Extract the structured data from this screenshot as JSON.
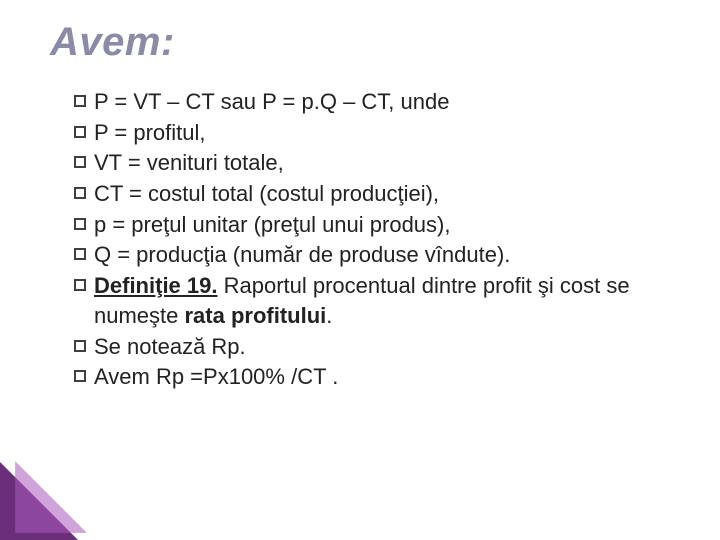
{
  "title": "Avem:",
  "lines": [
    {
      "type": "plain",
      "text": "P = VT – CT sau P = p.Q – CT, unde"
    },
    {
      "type": "plain",
      "text": "P = profitul,"
    },
    {
      "type": "plain",
      "text": "VT = venituri totale,"
    },
    {
      "type": "plain",
      "text": "CT = costul total (costul producţiei),"
    },
    {
      "type": "plain",
      "text": "p = preţul unitar (preţul unui produs),"
    },
    {
      "type": "plain",
      "text": "Q = producţia (număr de produse vîndute)."
    },
    {
      "type": "def",
      "lead": "Definiţie 19.",
      "mid": " Raportul procentual dintre profit şi cost se numeşte ",
      "tail": "rata profitului",
      "end": "."
    },
    {
      "type": "plain",
      "text": "Se notează Rp."
    },
    {
      "type": "plain",
      "text": "Avem Rp =Px100% /CT ."
    }
  ],
  "colors": {
    "title": "#8b8ba8",
    "text": "#222222",
    "bullet_border": "#404040",
    "corner_base": "#6b2f7a",
    "corner_light": "#aa5abe",
    "background": "#ffffff"
  },
  "fontsizes": {
    "title_pt": 40,
    "body_pt": 22
  }
}
